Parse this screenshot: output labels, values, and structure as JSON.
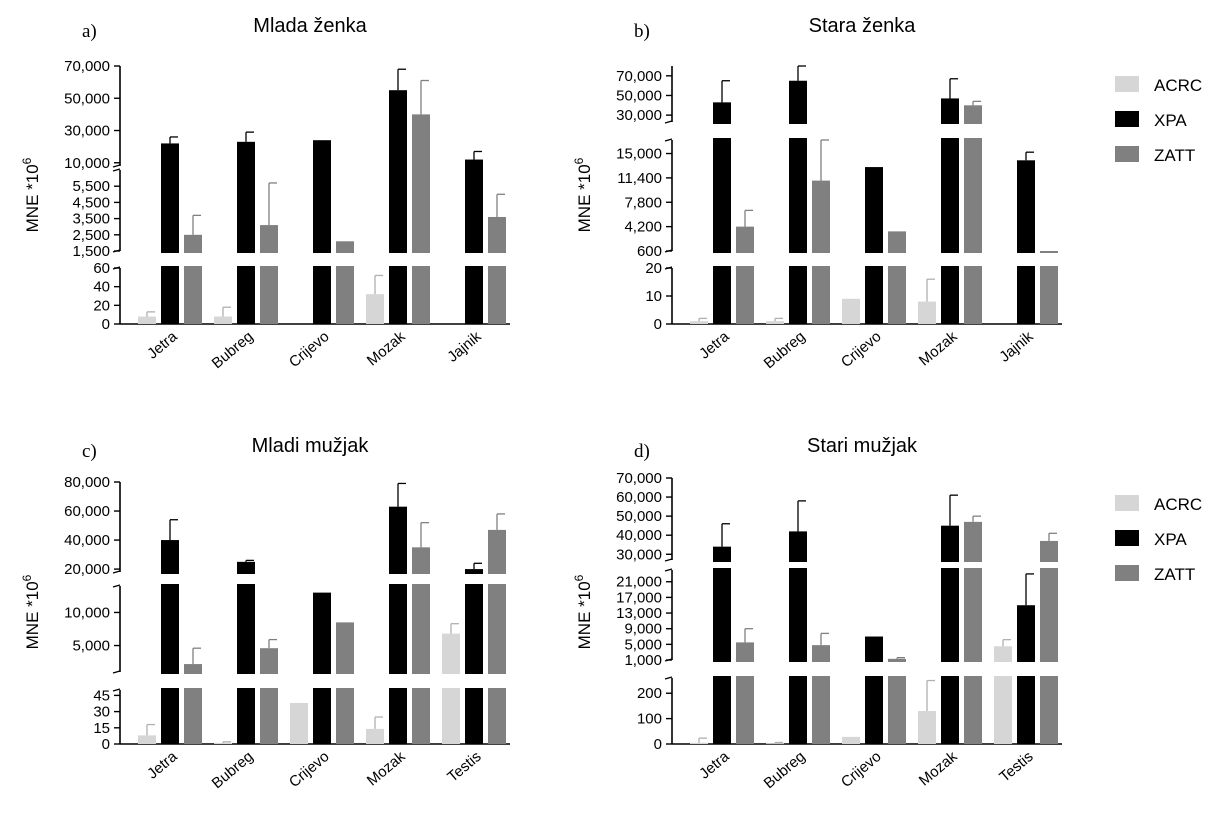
{
  "colors": {
    "ACRC": "#d6d6d6",
    "XPA": "#000000",
    "ZATT": "#808080"
  },
  "legend_order": [
    "ACRC",
    "XPA",
    "ZATT"
  ],
  "chart_data": [
    {
      "type": "bar",
      "panel_letter": "a)",
      "title": "Mlada ženka",
      "ylabel": "MNE *10",
      "ylabel_sup": "6",
      "categories": [
        "Jetra",
        "Bubreg",
        "Crijevo",
        "Mozak",
        "Jajnik"
      ],
      "segments": [
        {
          "range": [
            0,
            60
          ],
          "ticks": [
            0,
            20,
            40,
            60
          ],
          "tick_labels": [
            "0",
            "20",
            "40",
            "60"
          ]
        },
        {
          "range": [
            1500,
            6500
          ],
          "ticks": [
            1500,
            2500,
            3500,
            4500,
            5500
          ],
          "tick_labels": [
            "1,500",
            "2,500",
            "3,500",
            "4,500",
            "5,500"
          ]
        },
        {
          "range": [
            8000,
            70000
          ],
          "ticks": [
            10000,
            30000,
            50000,
            70000
          ],
          "tick_labels": [
            "10,000",
            "30,000",
            "50,000",
            "70,000"
          ]
        }
      ],
      "series": [
        {
          "name": "ACRC",
          "values": [
            8,
            8,
            0,
            32,
            0
          ],
          "errors": [
            5,
            10,
            0,
            20,
            0
          ]
        },
        {
          "name": "XPA",
          "values": [
            22000,
            23000,
            24000,
            55000,
            12000
          ],
          "errors": [
            4000,
            6000,
            0,
            13000,
            5000
          ]
        },
        {
          "name": "ZATT",
          "values": [
            2500,
            3100,
            2100,
            40000,
            3600
          ],
          "errors": [
            1200,
            2600,
            0,
            21000,
            1400
          ]
        }
      ]
    },
    {
      "type": "bar",
      "panel_letter": "b)",
      "title": "Stara ženka",
      "ylabel": "MNE *10",
      "ylabel_sup": "6",
      "categories": [
        "Jetra",
        "Bubreg",
        "Crijevo",
        "Mozak",
        "Jajnik"
      ],
      "segments": [
        {
          "range": [
            0,
            20
          ],
          "ticks": [
            0,
            10,
            20
          ],
          "tick_labels": [
            "0",
            "10",
            "20"
          ]
        },
        {
          "range": [
            600,
            17000
          ],
          "ticks": [
            600,
            4200,
            7800,
            11400,
            15000
          ],
          "tick_labels": [
            "600",
            "4,200",
            "7,800",
            "11,400",
            "15,000"
          ]
        },
        {
          "range": [
            23000,
            80000
          ],
          "ticks": [
            30000,
            50000,
            70000
          ],
          "tick_labels": [
            "30,000",
            "50,000",
            "70,000"
          ]
        }
      ],
      "series": [
        {
          "name": "ACRC",
          "values": [
            1,
            1,
            9,
            8,
            0
          ],
          "errors": [
            1,
            1,
            0,
            8,
            0
          ]
        },
        {
          "name": "XPA",
          "values": [
            43000,
            65000,
            13000,
            47000,
            14000
          ],
          "errors": [
            22000,
            15000,
            0,
            20000,
            1200
          ]
        },
        {
          "name": "ZATT",
          "values": [
            4200,
            11000,
            3500,
            40000,
            600
          ],
          "errors": [
            2400,
            6000,
            0,
            4000,
            0
          ]
        }
      ]
    },
    {
      "type": "bar",
      "panel_letter": "c)",
      "title": "Mladi mužjak",
      "ylabel": "MNE *10",
      "ylabel_sup": "6",
      "categories": [
        "Jetra",
        "Bubreg",
        "Crijevo",
        "Mozak",
        "Testis"
      ],
      "segments": [
        {
          "range": [
            0,
            50
          ],
          "ticks": [
            0,
            15,
            30,
            45
          ],
          "tick_labels": [
            "0",
            "15",
            "30",
            "45"
          ]
        },
        {
          "range": [
            1000,
            14000
          ],
          "ticks": [
            5000,
            10000
          ],
          "tick_labels": [
            "5,000",
            "10,000"
          ]
        },
        {
          "range": [
            18000,
            80000
          ],
          "ticks": [
            20000,
            40000,
            60000,
            80000
          ],
          "tick_labels": [
            "20,000",
            "40,000",
            "60,000",
            "80,000"
          ]
        }
      ],
      "series": [
        {
          "name": "ACRC",
          "values": [
            8,
            1,
            38,
            14,
            6800
          ],
          "errors": [
            10,
            1,
            0,
            11,
            1500
          ]
        },
        {
          "name": "XPA",
          "values": [
            40000,
            25000,
            13000,
            63000,
            20000
          ],
          "errors": [
            14000,
            1000,
            0,
            16000,
            4000
          ]
        },
        {
          "name": "ZATT",
          "value": null,
          "values": [
            2200,
            4600,
            8500,
            35000,
            47000
          ],
          "errors": [
            2400,
            1300,
            0,
            17000,
            11000
          ]
        }
      ]
    },
    {
      "type": "bar",
      "panel_letter": "d)",
      "title": "Stari mužjak",
      "ylabel": "MNE *10",
      "ylabel_sup": "6",
      "categories": [
        "Jetra",
        "Bubreg",
        "Crijevo",
        "Mozak",
        "Testis"
      ],
      "segments": [
        {
          "range": [
            0,
            260
          ],
          "ticks": [
            0,
            100,
            200
          ],
          "tick_labels": [
            "0",
            "100",
            "200"
          ]
        },
        {
          "range": [
            1000,
            24000
          ],
          "ticks": [
            1000,
            5000,
            9000,
            13000,
            17000,
            21000
          ],
          "tick_labels": [
            "1,000",
            "5,000",
            "9,000",
            "13,000",
            "17,000",
            "21,000"
          ]
        },
        {
          "range": [
            27000,
            70000
          ],
          "ticks": [
            30000,
            40000,
            50000,
            60000,
            70000
          ],
          "tick_labels": [
            "30,000",
            "40,000",
            "50,000",
            "60,000",
            "70,000"
          ]
        }
      ],
      "series": [
        {
          "name": "ACRC",
          "values": [
            5,
            3,
            28,
            130,
            4500
          ],
          "errors": [
            18,
            3,
            0,
            120,
            1700
          ]
        },
        {
          "name": "XPA",
          "values": [
            34000,
            42000,
            7000,
            45000,
            15000
          ],
          "errors": [
            12000,
            16000,
            0,
            16000,
            8000
          ]
        },
        {
          "name": "ZATT",
          "values": [
            5500,
            4800,
            1300,
            47000,
            37000
          ],
          "errors": [
            3500,
            3000,
            300,
            3000,
            4000
          ]
        }
      ]
    }
  ]
}
